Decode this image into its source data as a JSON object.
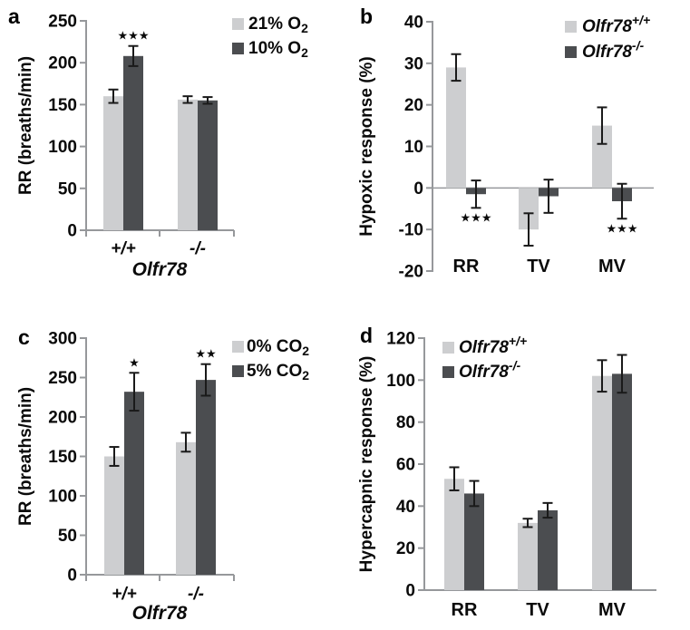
{
  "figure": {
    "background": "#ffffff",
    "colors": {
      "light_series": "#cdced0",
      "dark_series": "#4b4d50",
      "axis": "#96989b",
      "error": "#1a1a1a",
      "text": "#0a0a0a"
    }
  },
  "chart_data": [
    {
      "id": "a",
      "panel_label": "a",
      "type": "bar",
      "ylabel": "RR (breaths/min)",
      "xlabel": "Olfr78",
      "ylim": [
        0,
        250
      ],
      "ytick_step": 50,
      "ytick_labels": [
        "0",
        "50",
        "100",
        "150",
        "200",
        "250"
      ],
      "categories": [
        "+/+",
        "-/-"
      ],
      "categories_italic": true,
      "series": [
        {
          "name_base": "21% O",
          "name_sub": "2",
          "color": "light",
          "values": [
            160,
            156
          ],
          "errors": [
            8,
            4
          ]
        },
        {
          "name_base": "10% O",
          "name_sub": "2",
          "color": "dark",
          "values": [
            208,
            155
          ],
          "errors": [
            12,
            4
          ]
        }
      ],
      "annotations": [
        {
          "text": "***",
          "group": 0,
          "series": 1,
          "position": "above"
        }
      ],
      "legend_position": "outside-right"
    },
    {
      "id": "b",
      "panel_label": "b",
      "type": "bar",
      "ylabel": "Hypoxic response (%)",
      "xlabel": "",
      "ylim": [
        -20,
        40
      ],
      "ytick_step": 10,
      "ytick_labels": [
        "-20",
        "-10",
        "0",
        "10",
        "20",
        "30",
        "40"
      ],
      "categories": [
        "RR",
        "TV",
        "MV"
      ],
      "categories_italic": false,
      "series": [
        {
          "name_base": "Olfr78",
          "name_sup": "+/+",
          "italic": true,
          "color": "light",
          "values": [
            29,
            -10,
            15
          ],
          "errors": [
            3.2,
            3.9,
            4.4
          ]
        },
        {
          "name_base": "Olfr78",
          "name_sup": "-/-",
          "italic": true,
          "color": "dark",
          "values": [
            -1.5,
            -2,
            -3.2
          ],
          "errors": [
            3.3,
            4,
            4.2
          ]
        }
      ],
      "annotations": [
        {
          "text": "***",
          "group": 0,
          "series": 1,
          "position": "below"
        },
        {
          "text": "***",
          "group": 2,
          "series": 1,
          "position": "below"
        }
      ],
      "legend_position": "outside-right"
    },
    {
      "id": "c",
      "panel_label": "c",
      "type": "bar",
      "ylabel": "RR (breaths/min)",
      "xlabel": "Olfr78",
      "ylim": [
        0,
        300
      ],
      "ytick_step": 50,
      "ytick_labels": [
        "0",
        "50",
        "100",
        "150",
        "200",
        "250",
        "300"
      ],
      "categories": [
        "+/+",
        "-/-"
      ],
      "categories_italic": true,
      "series": [
        {
          "name_base": "0% CO",
          "name_sub": "2",
          "color": "light",
          "values": [
            150,
            168
          ],
          "errors": [
            12,
            12
          ]
        },
        {
          "name_base": "5% CO",
          "name_sub": "2",
          "color": "dark",
          "values": [
            232,
            247
          ],
          "errors": [
            24,
            20
          ]
        }
      ],
      "annotations": [
        {
          "text": "*",
          "group": 0,
          "series": 1,
          "position": "above"
        },
        {
          "text": "**",
          "group": 1,
          "series": 1,
          "position": "above"
        }
      ],
      "legend_position": "outside-right"
    },
    {
      "id": "d",
      "panel_label": "d",
      "type": "bar",
      "ylabel": "Hypercapnic response (%)",
      "xlabel": "",
      "ylim": [
        0,
        120
      ],
      "ytick_step": 20,
      "ytick_labels": [
        "0",
        "20",
        "40",
        "60",
        "80",
        "100",
        "120"
      ],
      "categories": [
        "RR",
        "TV",
        "MV"
      ],
      "categories_italic": false,
      "series": [
        {
          "name_base": "Olfr78",
          "name_sup": "+/+",
          "italic": true,
          "color": "light",
          "values": [
            53,
            32,
            102
          ],
          "errors": [
            5.5,
            2,
            7.5
          ]
        },
        {
          "name_base": "Olfr78",
          "name_sup": "-/-",
          "italic": true,
          "color": "dark",
          "values": [
            46,
            38,
            103
          ],
          "errors": [
            6,
            3.5,
            9
          ]
        }
      ],
      "annotations": [],
      "legend_position": "inside-top-left"
    }
  ]
}
